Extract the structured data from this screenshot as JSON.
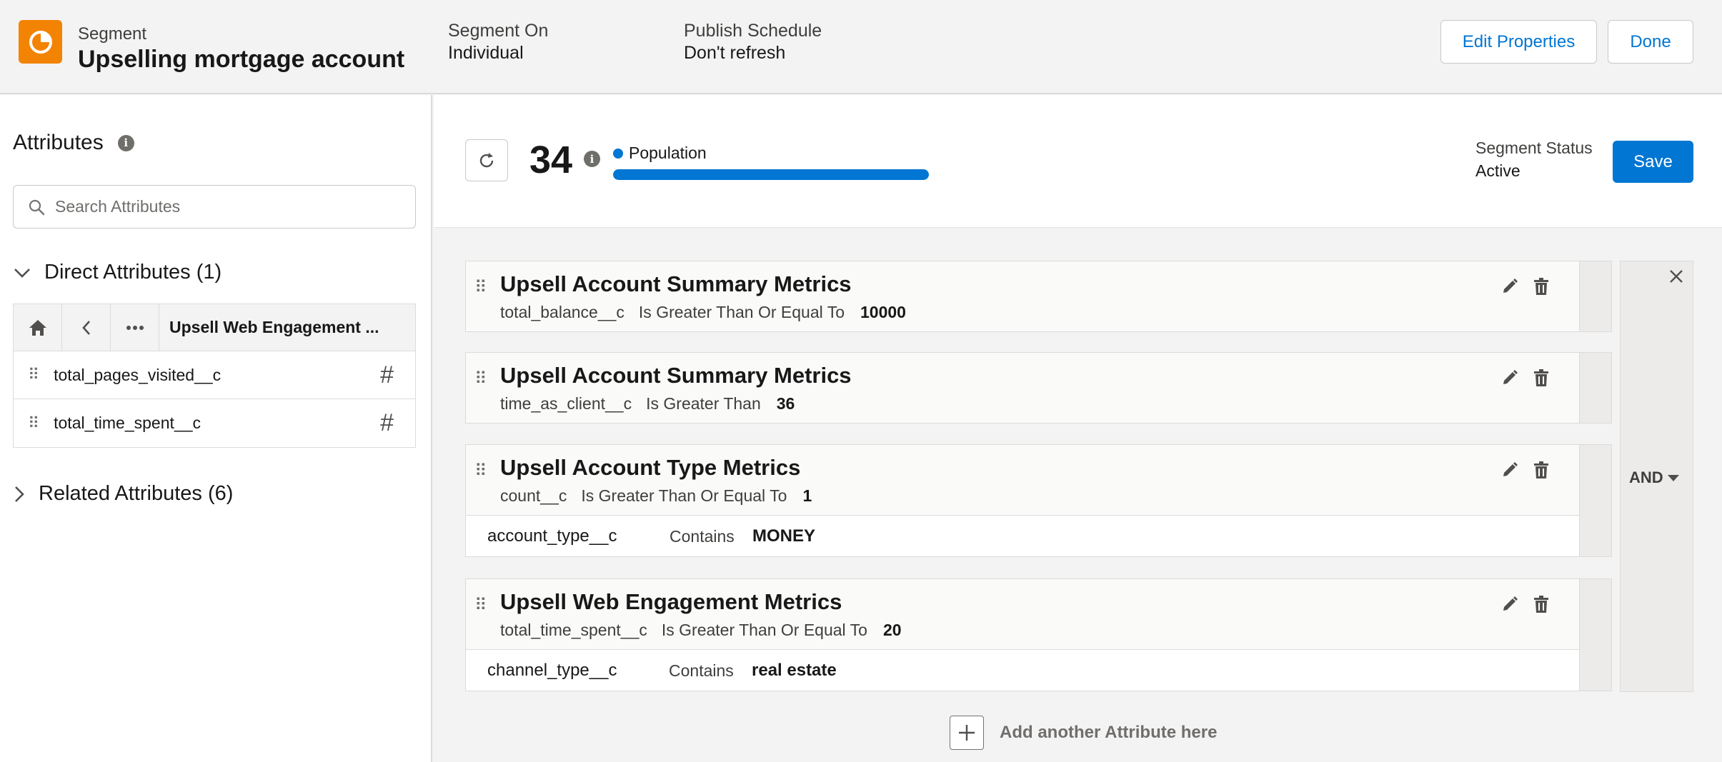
{
  "header": {
    "icon": "segment-pie-icon",
    "type_label": "Segment",
    "title": "Upselling mortgage account",
    "segment_on_label": "Segment On",
    "segment_on_value": "Individual",
    "publish_label": "Publish Schedule",
    "publish_value": "Don't refresh",
    "edit_button": "Edit Properties",
    "done_button": "Done"
  },
  "sidebar": {
    "title": "Attributes",
    "search_placeholder": "Search Attributes",
    "direct_section": "Direct Attributes (1)",
    "nav_title": "Upsell Web Engagement ...",
    "items": [
      {
        "label": "total_pages_visited__c",
        "type_symbol": "#"
      },
      {
        "label": "total_time_spent__c",
        "type_symbol": "#"
      }
    ],
    "related_section": "Related Attributes (6)"
  },
  "summary": {
    "count": "34",
    "population_label": "Population",
    "population_fill": 1.0,
    "status_label": "Segment Status",
    "status_value": "Active",
    "save_button": "Save"
  },
  "rules": [
    {
      "title": "Upsell Account Summary Metrics",
      "field": "total_balance__c",
      "operator": "Is Greater Than Or Equal To",
      "value": "10000"
    },
    {
      "title": "Upsell Account Summary Metrics",
      "field": "time_as_client__c",
      "operator": "Is Greater Than",
      "value": "36"
    },
    {
      "title": "Upsell Account Type Metrics",
      "field": "count__c",
      "operator": "Is Greater Than Or Equal To",
      "value": "1",
      "sub": {
        "field": "account_type__c",
        "operator": "Contains",
        "value": "MONEY"
      }
    },
    {
      "title": "Upsell Web Engagement Metrics",
      "field": "total_time_spent__c",
      "operator": "Is Greater Than Or Equal To",
      "value": "20",
      "sub": {
        "field": "channel_type__c",
        "operator": "Contains",
        "value": "real estate"
      }
    }
  ],
  "logic": {
    "label": "AND"
  },
  "add_attribute": "Add another Attribute here",
  "colors": {
    "brand_orange": "#f38303",
    "accent_blue": "#0176d3"
  }
}
